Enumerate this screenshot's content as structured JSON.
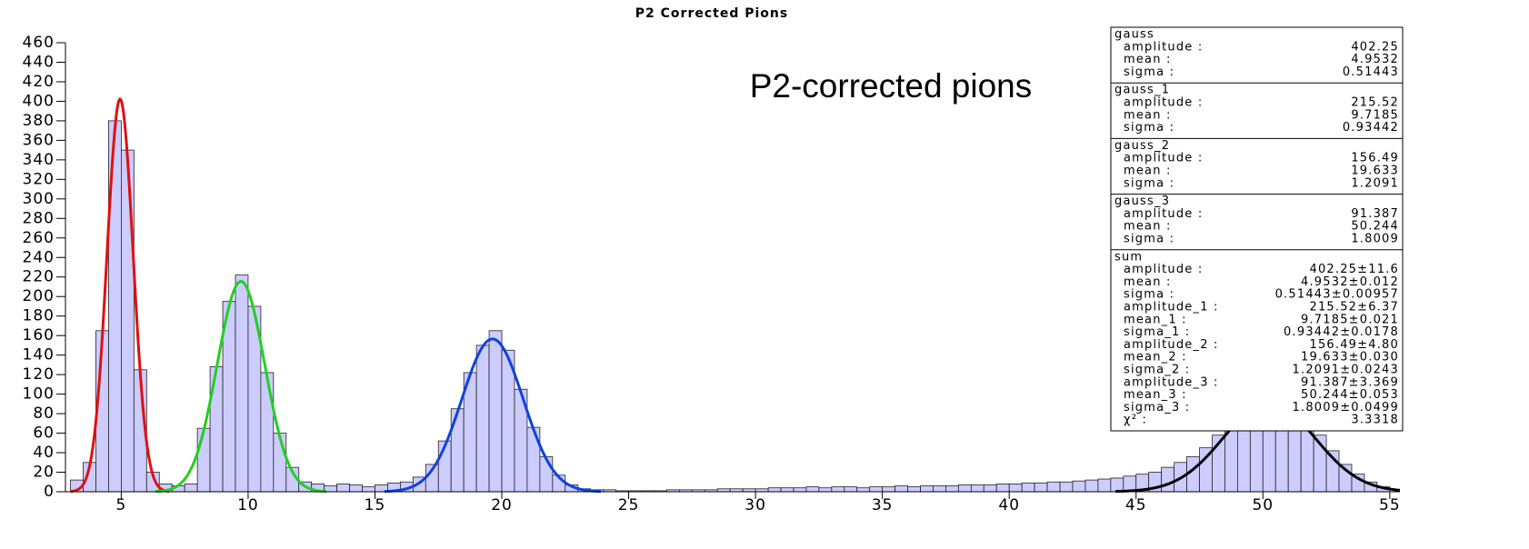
{
  "chart_data": {
    "type": "histogram",
    "title": "P2 Corrected Pions",
    "annotation": "P2-corrected pions",
    "bins": [
      3,
      3.5,
      4,
      4.5,
      5,
      5.5,
      6,
      6.5,
      7,
      7.5,
      8,
      8.5,
      9,
      9.5,
      10,
      10.5,
      11,
      11.5,
      12,
      12.5,
      13,
      13.5,
      14,
      14.5,
      15,
      15.5,
      16,
      16.5,
      17,
      17.5,
      18,
      18.5,
      19,
      19.5,
      20,
      20.5,
      21,
      21.5,
      22,
      22.5,
      23,
      23.5,
      24,
      24.5,
      25,
      25.5,
      26,
      26.5,
      27,
      27.5,
      28,
      28.5,
      29,
      29.5,
      30,
      30.5,
      31,
      31.5,
      32,
      32.5,
      33,
      33.5,
      34,
      34.5,
      35,
      35.5,
      36,
      36.5,
      37,
      37.5,
      38,
      38.5,
      39,
      39.5,
      40,
      40.5,
      41,
      41.5,
      42,
      42.5,
      43,
      43.5,
      44,
      44.5,
      45,
      45.5,
      46,
      46.5,
      47,
      47.5,
      48,
      48.5,
      49,
      49.5,
      50,
      50.5,
      51,
      51.5,
      52,
      52.5,
      53,
      53.5,
      54,
      54.5,
      55
    ],
    "values": [
      12,
      30,
      165,
      380,
      350,
      125,
      20,
      8,
      6,
      8,
      65,
      128,
      195,
      222,
      190,
      122,
      60,
      25,
      10,
      8,
      6,
      8,
      7,
      5,
      7,
      9,
      10,
      15,
      28,
      52,
      85,
      122,
      150,
      165,
      145,
      105,
      66,
      36,
      17,
      7,
      3,
      2,
      2,
      1,
      1,
      1,
      1,
      2,
      2,
      2,
      2,
      3,
      3,
      3,
      3,
      4,
      4,
      4,
      5,
      4,
      5,
      5,
      4,
      5,
      5,
      6,
      5,
      6,
      6,
      6,
      7,
      7,
      7,
      8,
      8,
      9,
      9,
      10,
      10,
      11,
      12,
      13,
      14,
      16,
      18,
      20,
      25,
      30,
      36,
      45,
      58,
      72,
      88,
      100,
      105,
      102,
      92,
      75,
      58,
      42,
      28,
      18,
      10,
      5
    ],
    "color": "#ccccff",
    "xlim": [
      2.8,
      55.4
    ],
    "xticks": [
      5,
      10,
      15,
      20,
      25,
      30,
      35,
      40,
      45,
      50,
      55
    ],
    "ylim": [
      0,
      460
    ],
    "yticks": [
      0,
      20,
      40,
      60,
      80,
      100,
      120,
      140,
      160,
      180,
      200,
      220,
      240,
      260,
      280,
      300,
      320,
      340,
      360,
      380,
      400,
      420,
      440,
      460
    ],
    "stats": [
      {
        "name": "gauss",
        "color": "#e01010",
        "rows": [
          {
            "label": "amplitude :",
            "value": 402.25
          },
          {
            "label": "mean :",
            "value": 4.9532
          },
          {
            "label": "sigma :",
            "value": 0.51443
          }
        ]
      },
      {
        "name": "gauss_1",
        "color": "#20d020",
        "rows": [
          {
            "label": "amplitude :",
            "value": 215.52
          },
          {
            "label": "mean :",
            "value": 9.7185
          },
          {
            "label": "sigma :",
            "value": 0.93442
          }
        ]
      },
      {
        "name": "gauss_2",
        "color": "#1040e0",
        "rows": [
          {
            "label": "amplitude :",
            "value": 156.49
          },
          {
            "label": "mean :",
            "value": 19.633
          },
          {
            "label": "sigma :",
            "value": 1.2091
          }
        ]
      },
      {
        "name": "gauss_3",
        "color": "#000000",
        "rows": [
          {
            "label": "amplitude :",
            "value": 91.387
          },
          {
            "label": "mean :",
            "value": 50.244
          },
          {
            "label": "sigma :",
            "value": 1.8009
          }
        ]
      },
      {
        "name": "sum",
        "rows": [
          {
            "label": "amplitude :",
            "value": "402.25±11.6"
          },
          {
            "label": "mean :",
            "value": "4.9532±0.012"
          },
          {
            "label": "sigma :",
            "value": "0.51443±0.00957"
          },
          {
            "label": "amplitude_1 :",
            "value": "215.52±6.37"
          },
          {
            "label": "mean_1 :",
            "value": "9.7185±0.021"
          },
          {
            "label": "sigma_1 :",
            "value": "0.93442±0.0178"
          },
          {
            "label": "amplitude_2 :",
            "value": "156.49±4.80"
          },
          {
            "label": "mean_2 :",
            "value": "19.633±0.030"
          },
          {
            "label": "sigma_2 :",
            "value": "1.2091±0.0243"
          },
          {
            "label": "amplitude_3 :",
            "value": "91.387±3.369"
          },
          {
            "label": "mean_3 :",
            "value": "50.244±0.053"
          },
          {
            "label": "sigma_3 :",
            "value": "1.8009±0.0499"
          },
          {
            "label": "χ² :",
            "value": "3.3318"
          }
        ]
      }
    ]
  }
}
